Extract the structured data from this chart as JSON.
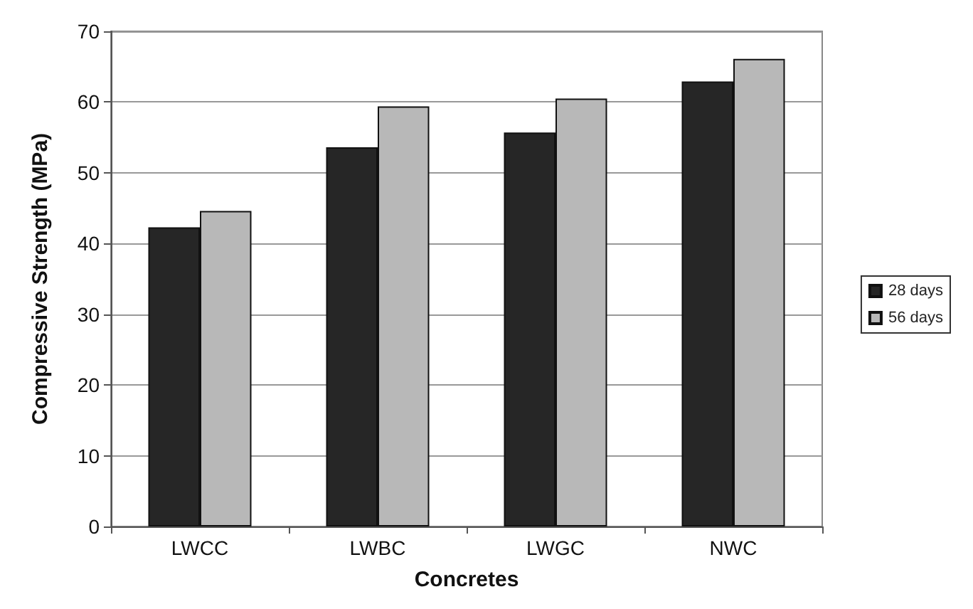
{
  "chart_data": {
    "type": "bar",
    "xlabel": "Concretes",
    "ylabel": "Compressive Strength (MPa)",
    "categories": [
      "LWCC",
      "LWBC",
      "LWGC",
      "NWC"
    ],
    "series": [
      {
        "name": "28 days",
        "color": "#262626",
        "values": [
          42.3,
          53.6,
          55.7,
          62.9
        ]
      },
      {
        "name": "56 days",
        "color": "#b8b8b8",
        "values": [
          44.6,
          59.4,
          60.5,
          66.1
        ]
      }
    ],
    "ylim": [
      0,
      70
    ],
    "yticks": [
      0,
      10,
      20,
      30,
      40,
      50,
      60,
      70
    ],
    "grid": "y",
    "legend": "right"
  }
}
